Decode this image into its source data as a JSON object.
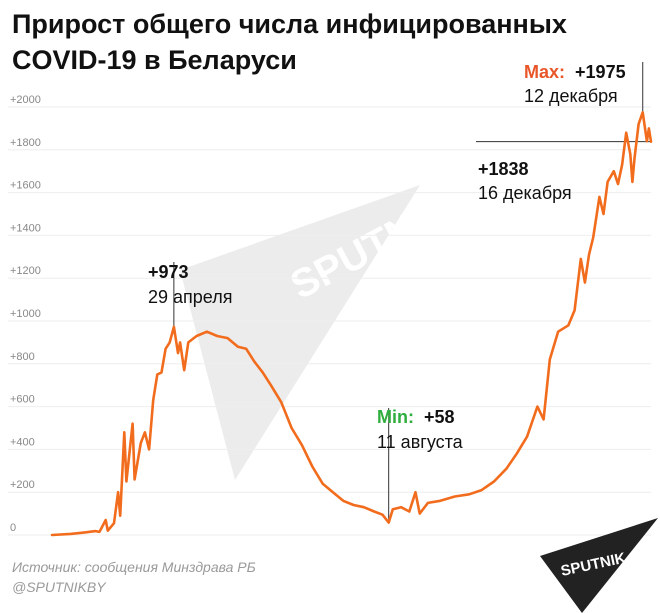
{
  "title_line1": "Прирост общего числа инфицированных",
  "title_line2": "COVID-19 в Беларуси",
  "source": "Источник: сообщения Минздрава РБ",
  "handle": "@SPUTNIKBY",
  "watermark": "SPUTNIK",
  "logo_text": "SPUTNIK",
  "colors": {
    "line": "#f26c1d",
    "max": "#e8562a",
    "min": "#2fae3e",
    "watermark": "#e6e6e6",
    "logo": "#222222"
  },
  "annotations": {
    "peak1": {
      "value": "+973",
      "date": "29 апреля"
    },
    "min": {
      "label": "Min:",
      "value": "+58",
      "date": "11 августа"
    },
    "max": {
      "label": "Max:",
      "value": "+1975",
      "date": "12 декабря"
    },
    "last": {
      "value": "+1838",
      "date": "16 декабря"
    }
  },
  "chart_data": {
    "type": "line",
    "title": "Прирост общего числа инфицированных COVID-19 в Беларуси",
    "xlabel": "",
    "ylabel": "",
    "ylim": [
      0,
      2000
    ],
    "yticks": [
      "0",
      "+200",
      "+400",
      "+600",
      "+800",
      "+1000",
      "+1200",
      "+1400",
      "+1600",
      "+1800",
      "+2000"
    ],
    "grid": true,
    "x_start": "2020-03-01",
    "x_end": "2020-12-16",
    "series": [
      {
        "points": [
          [
            "2020-03-01",
            0
          ],
          [
            "2020-03-10",
            5
          ],
          [
            "2020-03-17",
            12
          ],
          [
            "2020-03-22",
            18
          ],
          [
            "2020-03-24",
            15
          ],
          [
            "2020-03-27",
            70
          ],
          [
            "2020-03-28",
            20
          ],
          [
            "2020-03-31",
            55
          ],
          [
            "2020-04-02",
            200
          ],
          [
            "2020-04-03",
            90
          ],
          [
            "2020-04-05",
            480
          ],
          [
            "2020-04-06",
            250
          ],
          [
            "2020-04-09",
            520
          ],
          [
            "2020-04-10",
            260
          ],
          [
            "2020-04-13",
            430
          ],
          [
            "2020-04-15",
            480
          ],
          [
            "2020-04-17",
            400
          ],
          [
            "2020-04-19",
            630
          ],
          [
            "2020-04-21",
            750
          ],
          [
            "2020-04-23",
            760
          ],
          [
            "2020-04-25",
            870
          ],
          [
            "2020-04-27",
            900
          ],
          [
            "2020-04-29",
            973
          ],
          [
            "2020-05-01",
            850
          ],
          [
            "2020-05-02",
            900
          ],
          [
            "2020-05-04",
            770
          ],
          [
            "2020-05-06",
            900
          ],
          [
            "2020-05-10",
            930
          ],
          [
            "2020-05-15",
            950
          ],
          [
            "2020-05-20",
            930
          ],
          [
            "2020-05-25",
            920
          ],
          [
            "2020-05-30",
            880
          ],
          [
            "2020-06-03",
            870
          ],
          [
            "2020-06-07",
            810
          ],
          [
            "2020-06-11",
            760
          ],
          [
            "2020-06-15",
            700
          ],
          [
            "2020-06-20",
            620
          ],
          [
            "2020-06-25",
            500
          ],
          [
            "2020-06-30",
            420
          ],
          [
            "2020-07-05",
            320
          ],
          [
            "2020-07-10",
            240
          ],
          [
            "2020-07-15",
            200
          ],
          [
            "2020-07-20",
            160
          ],
          [
            "2020-07-25",
            140
          ],
          [
            "2020-07-30",
            130
          ],
          [
            "2020-08-04",
            110
          ],
          [
            "2020-08-08",
            95
          ],
          [
            "2020-08-11",
            58
          ],
          [
            "2020-08-13",
            120
          ],
          [
            "2020-08-17",
            130
          ],
          [
            "2020-08-21",
            110
          ],
          [
            "2020-08-24",
            200
          ],
          [
            "2020-08-26",
            100
          ],
          [
            "2020-08-30",
            150
          ],
          [
            "2020-09-05",
            160
          ],
          [
            "2020-09-12",
            180
          ],
          [
            "2020-09-19",
            190
          ],
          [
            "2020-09-25",
            210
          ],
          [
            "2020-10-01",
            250
          ],
          [
            "2020-10-07",
            310
          ],
          [
            "2020-10-12",
            380
          ],
          [
            "2020-10-17",
            460
          ],
          [
            "2020-10-22",
            600
          ],
          [
            "2020-10-25",
            540
          ],
          [
            "2020-10-28",
            820
          ],
          [
            "2020-11-01",
            950
          ],
          [
            "2020-11-06",
            980
          ],
          [
            "2020-11-09",
            1050
          ],
          [
            "2020-11-12",
            1290
          ],
          [
            "2020-11-14",
            1180
          ],
          [
            "2020-11-16",
            1310
          ],
          [
            "2020-11-18",
            1390
          ],
          [
            "2020-11-21",
            1580
          ],
          [
            "2020-11-23",
            1500
          ],
          [
            "2020-11-25",
            1650
          ],
          [
            "2020-11-28",
            1700
          ],
          [
            "2020-11-30",
            1640
          ],
          [
            "2020-12-02",
            1730
          ],
          [
            "2020-12-04",
            1880
          ],
          [
            "2020-12-06",
            1780
          ],
          [
            "2020-12-07",
            1650
          ],
          [
            "2020-12-08",
            1760
          ],
          [
            "2020-12-10",
            1920
          ],
          [
            "2020-12-12",
            1975
          ],
          [
            "2020-12-14",
            1840
          ],
          [
            "2020-12-15",
            1900
          ],
          [
            "2020-12-16",
            1838
          ]
        ]
      }
    ],
    "annotated_points": [
      {
        "date": "2020-04-29",
        "value": 973
      },
      {
        "date": "2020-08-11",
        "value": 58
      },
      {
        "date": "2020-12-12",
        "value": 1975
      },
      {
        "date": "2020-12-16",
        "value": 1838
      }
    ]
  }
}
